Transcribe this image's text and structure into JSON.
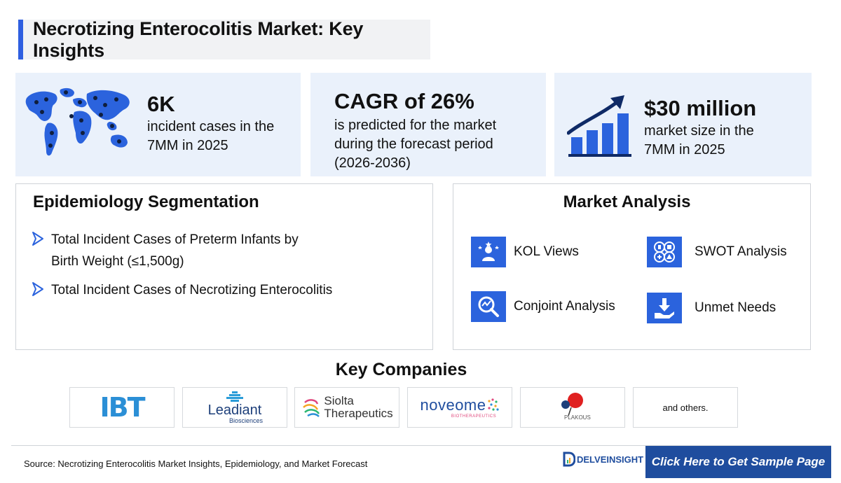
{
  "title": "Necrotizing Enterocolitis Market: Key Insights",
  "stats": [
    {
      "value": "6K",
      "lines": [
        "incident cases in the",
        "7MM in 2025"
      ],
      "icon": "world-map-icon"
    },
    {
      "value": "CAGR of 26%",
      "lines": [
        "is predicted for the market",
        "during the forecast period",
        "(2026-2036)"
      ]
    },
    {
      "value": "$30 million",
      "lines": [
        "market size in the",
        "7MM in 2025"
      ],
      "icon": "growth-chart-icon"
    }
  ],
  "epidemiology": {
    "title": "Epidemiology Segmentation",
    "items": [
      [
        "Total Incident Cases of Preterm Infants by",
        "Birth Weight (≤1,500g)"
      ],
      [
        "Total Incident Cases of Necrotizing Enterocolitis"
      ]
    ]
  },
  "market_analysis": {
    "title": "Market Analysis",
    "items": [
      {
        "label": "KOL Views",
        "icon": "kol-icon"
      },
      {
        "label": "SWOT Analysis",
        "icon": "swot-icon"
      },
      {
        "label": "Conjoint Analysis",
        "icon": "conjoint-icon"
      },
      {
        "label": "Unmet Needs",
        "icon": "unmet-needs-icon"
      }
    ]
  },
  "companies": {
    "title": "Key Companies",
    "logos": [
      "IBT",
      "Leadiant",
      "Biosciences",
      "Siolta",
      "Therapeutics",
      "noveome",
      "BIOTHERAPEUTICS",
      "PLAKOUS"
    ],
    "others": "and others."
  },
  "footer": {
    "source": "Source: Necrotizing Enterocolitis Market Insights, Epidemiology, and Market Forecast",
    "brand": "DELVEINSIGHT",
    "cta": "Click Here to Get Sample Page"
  },
  "colors": {
    "accent": "#2b63dd",
    "panel_bg": "#eaf1fb",
    "cta_bg": "#1f4d9e"
  }
}
